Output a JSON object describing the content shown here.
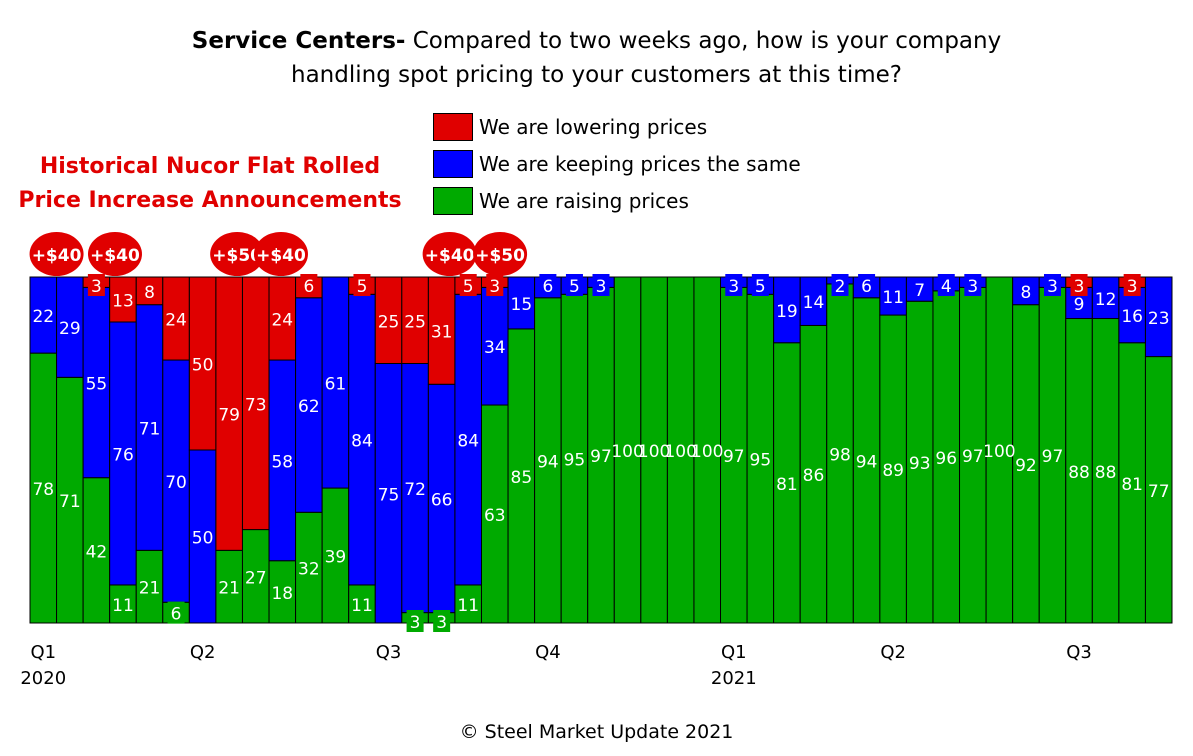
{
  "title": {
    "bold": "Service Centers-",
    "line1": " Compared to two weeks ago, how is your company",
    "line2": "handling spot pricing to your customers at this time?"
  },
  "annotation_title": {
    "line1": "Historical Nucor Flat Rolled",
    "line2": "Price Increase Announcements"
  },
  "footer": "© Steel Market Update 2021",
  "chart_data": {
    "type": "bar",
    "stacked": true,
    "ylim": [
      0,
      100
    ],
    "legend": "top",
    "colors": {
      "lowering": "#e00000",
      "same": "#0000ff",
      "raising": "#00aa00"
    },
    "series": [
      {
        "name": "We are lowering prices",
        "key": "lowering",
        "values": [
          0,
          0,
          3,
          13,
          8,
          24,
          50,
          79,
          73,
          24,
          6,
          0,
          5,
          25,
          25,
          31,
          5,
          3,
          0,
          0,
          0,
          0,
          0,
          0,
          0,
          0,
          0,
          0,
          0,
          0,
          0,
          0,
          0,
          0,
          0,
          0,
          0,
          0,
          0,
          3,
          0,
          3,
          0
        ]
      },
      {
        "name": "We are keeping prices the same",
        "key": "same",
        "values": [
          22,
          29,
          55,
          76,
          71,
          70,
          50,
          0,
          0,
          58,
          62,
          61,
          84,
          75,
          72,
          66,
          84,
          34,
          15,
          6,
          5,
          3,
          0,
          0,
          0,
          0,
          3,
          5,
          19,
          14,
          2,
          6,
          11,
          7,
          4,
          3,
          0,
          8,
          3,
          9,
          12,
          16,
          23
        ]
      },
      {
        "name": "We are raising prices",
        "key": "raising",
        "values": [
          78,
          71,
          42,
          11,
          21,
          6,
          0,
          21,
          27,
          18,
          32,
          39,
          11,
          0,
          3,
          3,
          11,
          63,
          85,
          94,
          95,
          97,
          100,
          100,
          100,
          100,
          97,
          95,
          81,
          86,
          98,
          94,
          89,
          93,
          96,
          97,
          100,
          92,
          97,
          88,
          88,
          81,
          77
        ]
      }
    ],
    "x_tick_labels": [
      {
        "bar": 1,
        "label": "Q1",
        "year": "2020"
      },
      {
        "bar": 7,
        "label": "Q2",
        "year": ""
      },
      {
        "bar": 14,
        "label": "Q3",
        "year": ""
      },
      {
        "bar": 20,
        "label": "Q4",
        "year": ""
      },
      {
        "bar": 27,
        "label": "Q1",
        "year": "2021"
      },
      {
        "bar": 33,
        "label": "Q2",
        "year": ""
      },
      {
        "bar": 40,
        "label": "Q3",
        "year": ""
      }
    ],
    "annotations": [
      {
        "bar": 1,
        "label": "+$40"
      },
      {
        "bar": 3,
        "label": "+$40"
      },
      {
        "bar": 8,
        "label": "+$50"
      },
      {
        "bar": 10,
        "label": "+$40"
      },
      {
        "bar": 16,
        "label": "+$40"
      },
      {
        "bar": 18,
        "label": "+$50"
      }
    ]
  }
}
